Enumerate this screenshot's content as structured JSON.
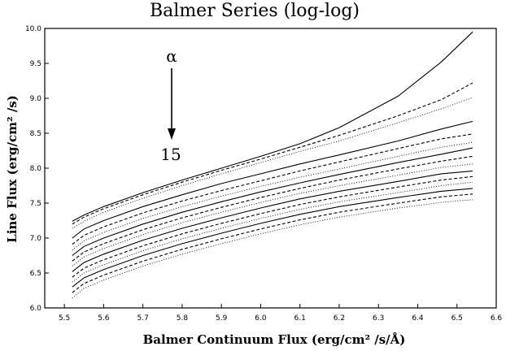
{
  "chart_data": {
    "type": "line",
    "title": "Balmer Series (log-log)",
    "xlabel": "Balmer Continuum Flux (erg/cm² /s/Å)",
    "ylabel": "Line Flux (erg/cm² /s)",
    "xlim": [
      5.45,
      6.6
    ],
    "ylim": [
      6.0,
      10.0
    ],
    "xticks": [
      "5.5",
      "5.6",
      "5.7",
      "5.8",
      "5.9",
      "6.0",
      "6.1",
      "6.2",
      "6.3",
      "6.4",
      "6.5",
      "6.6"
    ],
    "yticks": [
      "6.0",
      "6.5",
      "7.0",
      "7.5",
      "8.0",
      "8.5",
      "9.0",
      "9.5",
      "10.0"
    ],
    "grid": false,
    "annotation": {
      "top_label": "α",
      "bottom_label": "15"
    },
    "x": [
      5.52,
      5.55,
      5.6,
      5.7,
      5.8,
      5.9,
      6.0,
      6.1,
      6.2,
      6.35,
      6.46,
      6.54
    ],
    "series": [
      {
        "style": "solid",
        "values": [
          7.24,
          7.33,
          7.45,
          7.65,
          7.83,
          8.0,
          8.17,
          8.35,
          8.58,
          9.03,
          9.52,
          9.95
        ]
      },
      {
        "style": "dashed",
        "values": [
          7.2,
          7.3,
          7.42,
          7.62,
          7.8,
          7.97,
          8.13,
          8.3,
          8.47,
          8.75,
          8.98,
          9.22
        ]
      },
      {
        "style": "dotted",
        "values": [
          7.14,
          7.24,
          7.37,
          7.57,
          7.75,
          7.92,
          8.08,
          8.24,
          8.39,
          8.65,
          8.85,
          9.01
        ]
      },
      {
        "style": "solid",
        "values": [
          7.0,
          7.13,
          7.25,
          7.45,
          7.62,
          7.78,
          7.92,
          8.06,
          8.19,
          8.39,
          8.56,
          8.67
        ]
      },
      {
        "style": "dashed",
        "values": [
          6.91,
          7.04,
          7.16,
          7.36,
          7.53,
          7.68,
          7.82,
          7.96,
          8.09,
          8.28,
          8.42,
          8.49
        ]
      },
      {
        "style": "dotted",
        "values": [
          6.83,
          6.96,
          7.08,
          7.28,
          7.45,
          7.6,
          7.74,
          7.87,
          7.99,
          8.17,
          8.3,
          8.37
        ]
      },
      {
        "style": "solid",
        "values": [
          6.75,
          6.88,
          7.0,
          7.2,
          7.37,
          7.52,
          7.66,
          7.79,
          7.91,
          8.08,
          8.2,
          8.29
        ]
      },
      {
        "style": "dashed",
        "values": [
          6.67,
          6.8,
          6.92,
          7.12,
          7.29,
          7.44,
          7.58,
          7.71,
          7.83,
          7.99,
          8.1,
          8.17
        ]
      },
      {
        "style": "dotted",
        "values": [
          6.6,
          6.73,
          6.85,
          7.05,
          7.22,
          7.37,
          7.51,
          7.64,
          7.75,
          7.9,
          8.01,
          8.06
        ]
      },
      {
        "style": "solid",
        "values": [
          6.52,
          6.65,
          6.77,
          6.97,
          7.14,
          7.29,
          7.43,
          7.56,
          7.67,
          7.81,
          7.92,
          7.96
        ]
      },
      {
        "style": "dashed",
        "values": [
          6.44,
          6.57,
          6.69,
          6.89,
          7.06,
          7.21,
          7.35,
          7.48,
          7.59,
          7.73,
          7.83,
          7.88
        ]
      },
      {
        "style": "dotted",
        "values": [
          6.37,
          6.5,
          6.62,
          6.82,
          6.99,
          7.14,
          7.28,
          7.41,
          7.52,
          7.65,
          7.75,
          7.8
        ]
      },
      {
        "style": "solid",
        "values": [
          6.3,
          6.43,
          6.55,
          6.75,
          6.92,
          7.07,
          7.21,
          7.34,
          7.45,
          7.58,
          7.67,
          7.71
        ]
      },
      {
        "style": "dashed",
        "values": [
          6.22,
          6.35,
          6.47,
          6.67,
          6.84,
          6.99,
          7.13,
          7.26,
          7.37,
          7.5,
          7.59,
          7.63
        ]
      },
      {
        "style": "dotted",
        "values": [
          6.14,
          6.28,
          6.4,
          6.6,
          6.77,
          6.92,
          7.06,
          7.19,
          7.3,
          7.43,
          7.51,
          7.55
        ]
      }
    ]
  }
}
